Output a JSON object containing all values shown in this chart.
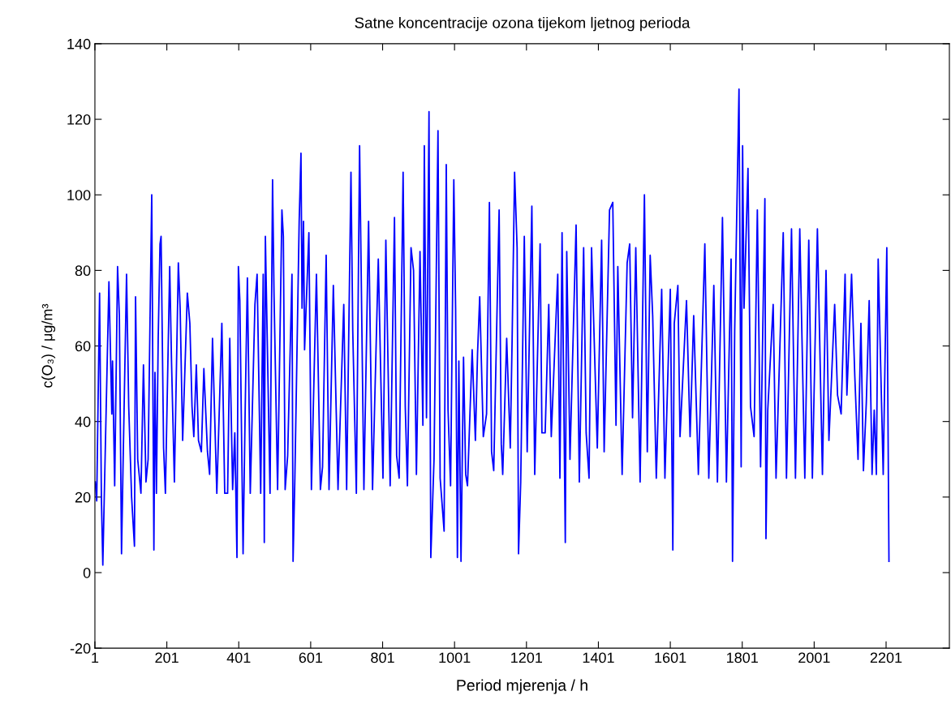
{
  "chart_data": {
    "type": "line",
    "title": "Satne koncentracije ozona tijekom ljetnog perioda",
    "xlabel": "Period mjerenja / h",
    "ylabel": "c(O₃) / μg/m³",
    "xlim": [
      1,
      2377
    ],
    "ylim": [
      -20,
      140
    ],
    "xticks": [
      1,
      201,
      401,
      601,
      801,
      1001,
      1201,
      1401,
      1601,
      1801,
      2001,
      2201
    ],
    "yticks": [
      -20,
      0,
      20,
      40,
      60,
      80,
      100,
      120,
      140
    ],
    "grid": false,
    "marker": "none",
    "line_style": "solid",
    "series": [
      {
        "color": "#0000ff",
        "x": [
          2,
          6,
          14,
          19,
          23,
          27,
          40,
          48,
          50,
          56,
          64,
          69,
          75,
          79,
          89,
          95,
          103,
          111,
          114,
          120,
          129,
          136,
          143,
          149,
          159,
          165,
          168,
          172,
          177,
          182,
          185,
          192,
          197,
          209,
          214,
          222,
          233,
          238,
          245,
          258,
          265,
          271,
          276,
          283,
          289,
          297,
          304,
          314,
          320,
          328,
          340,
          354,
          362,
          370,
          376,
          384,
          390,
          396,
          400,
          404,
          413,
          419,
          425,
          433,
          446,
          452,
          462,
          469,
          472,
          475,
          488,
          495,
          499,
          509,
          521,
          525,
          530,
          537,
          549,
          552,
          557,
          569,
          574,
          577,
          581,
          584,
          596,
          603,
          617,
          628,
          634,
          644,
          652,
          664,
          677,
          693,
          701,
          713,
          718,
          728,
          737,
          749,
          762,
          773,
          789,
          802,
          810,
          822,
          834,
          840,
          847,
          858,
          864,
          870,
          880,
          887,
          895,
          905,
          913,
          917,
          923,
          930,
          935,
          944,
          955,
          961,
          972,
          978,
          983,
          990,
          999,
          1004,
          1009,
          1013,
          1019,
          1026,
          1032,
          1037,
          1050,
          1059,
          1065,
          1071,
          1081,
          1090,
          1098,
          1104,
          1110,
          1125,
          1131,
          1135,
          1146,
          1156,
          1161,
          1168,
          1175,
          1179,
          1185,
          1195,
          1203,
          1216,
          1224,
          1239,
          1244,
          1253,
          1263,
          1270,
          1288,
          1294,
          1300,
          1309,
          1313,
          1322,
          1339,
          1348,
          1360,
          1367,
          1375,
          1382,
          1398,
          1410,
          1417,
          1432,
          1441,
          1450,
          1455,
          1467,
          1481,
          1488,
          1496,
          1505,
          1517,
          1529,
          1537,
          1545,
          1552,
          1562,
          1577,
          1586,
          1601,
          1608,
          1612,
          1622,
          1628,
          1646,
          1656,
          1666,
          1679,
          1697,
          1708,
          1722,
          1732,
          1746,
          1757,
          1770,
          1774,
          1780,
          1792,
          1798,
          1802,
          1806,
          1817,
          1824,
          1834,
          1843,
          1852,
          1864,
          1867,
          1872,
          1887,
          1895,
          1915,
          1924,
          1938,
          1949,
          1961,
          1975,
          1986,
          1996,
          2010,
          2024,
          2034,
          2042,
          2058,
          2066,
          2076,
          2087,
          2092,
          2105,
          2114,
          2123,
          2131,
          2138,
          2146,
          2154,
          2162,
          2168,
          2174,
          2179,
          2193,
          2203,
          2209
        ],
        "values": [
          24,
          19,
          74,
          20,
          2,
          20,
          77,
          42,
          56,
          23,
          81,
          68,
          5,
          27,
          79,
          44,
          20,
          7,
          73,
          30,
          21,
          55,
          24,
          30,
          100,
          6,
          53,
          21,
          62,
          87,
          89,
          33,
          21,
          81,
          56,
          24,
          82,
          70,
          35,
          74,
          66,
          44,
          36,
          55,
          35,
          32,
          54,
          32,
          26,
          62,
          21,
          66,
          21,
          21,
          62,
          22,
          37,
          4,
          81,
          72,
          5,
          44,
          78,
          21,
          71,
          79,
          21,
          79,
          8,
          89,
          21,
          104,
          74,
          22,
          96,
          89,
          22,
          31,
          79,
          3,
          25,
          93,
          111,
          70,
          93,
          59,
          90,
          22,
          79,
          22,
          28,
          84,
          22,
          76,
          22,
          71,
          22,
          106,
          64,
          21,
          113,
          22,
          93,
          22,
          83,
          25,
          88,
          23,
          94,
          31,
          25,
          106,
          44,
          23,
          86,
          80,
          26,
          85,
          39,
          113,
          41,
          122,
          4,
          30,
          117,
          25,
          11,
          108,
          43,
          23,
          104,
          70,
          4,
          56,
          3,
          57,
          26,
          23,
          59,
          35,
          58,
          73,
          36,
          42,
          98,
          32,
          27,
          96,
          34,
          26,
          62,
          33,
          61,
          106,
          86,
          5,
          24,
          89,
          32,
          97,
          26,
          87,
          37,
          37,
          71,
          36,
          79,
          25,
          90,
          8,
          85,
          30,
          92,
          24,
          86,
          37,
          25,
          86,
          33,
          88,
          32,
          96,
          98,
          39,
          81,
          26,
          82,
          87,
          41,
          86,
          24,
          100,
          32,
          84,
          68,
          25,
          75,
          25,
          75,
          6,
          66,
          76,
          36,
          72,
          36,
          68,
          26,
          87,
          25,
          76,
          24,
          94,
          24,
          83,
          3,
          64,
          128,
          28,
          113,
          70,
          107,
          44,
          36,
          96,
          28,
          99,
          9,
          43,
          71,
          25,
          90,
          25,
          91,
          25,
          91,
          25,
          88,
          25,
          91,
          26,
          80,
          35,
          71,
          47,
          42,
          79,
          47,
          79,
          52,
          30,
          66,
          27,
          45,
          72,
          26,
          43,
          26,
          83,
          26,
          86,
          3
        ]
      }
    ]
  }
}
